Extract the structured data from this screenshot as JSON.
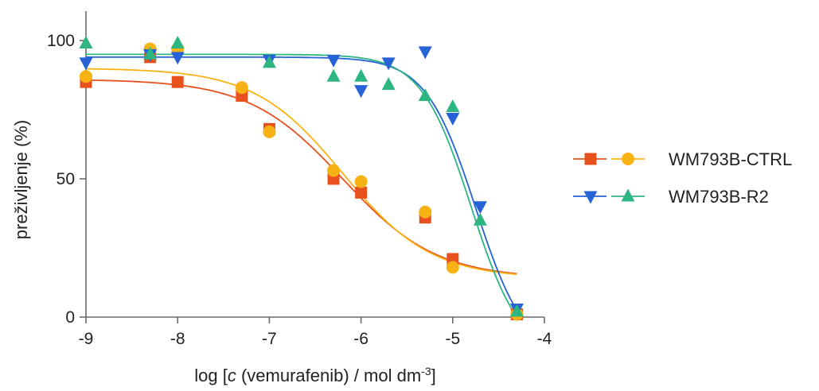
{
  "chart_data": {
    "type": "scatter",
    "xlabel": {
      "prefix": "log [",
      "italic": "c",
      "middle": " (vemurafenib) / mol dm",
      "superscript": "-3",
      "suffix": "]"
    },
    "ylabel": "preživljenje (%)",
    "xlim": [
      -9,
      -4
    ],
    "ylim": [
      0,
      100
    ],
    "x_ticks": [
      -9,
      -8,
      -7,
      -6,
      -5,
      -4
    ],
    "y_ticks": [
      0,
      50,
      100
    ],
    "grid": false,
    "legend_position": "right",
    "legend": [
      {
        "label": "WM793B-CTRL",
        "series": [
          0,
          1
        ]
      },
      {
        "label": "WM793B-R2",
        "series": [
          2,
          3
        ]
      }
    ],
    "series": [
      {
        "marker": "square",
        "color": "#E8501E",
        "points": [
          [
            -9,
            85
          ],
          [
            -8.3,
            94
          ],
          [
            -8,
            85
          ],
          [
            -7.3,
            80
          ],
          [
            -7,
            68
          ],
          [
            -6.3,
            50
          ],
          [
            -6,
            45
          ],
          [
            -5.3,
            36
          ],
          [
            -5,
            21
          ],
          [
            -4.3,
            1
          ]
        ],
        "fit": {
          "top": 86,
          "bottom": 14,
          "logIC50": -6.2,
          "hill": 0.85
        }
      },
      {
        "marker": "circle",
        "color": "#F9B214",
        "points": [
          [
            -9,
            87
          ],
          [
            -8.3,
            97
          ],
          [
            -8,
            97
          ],
          [
            -7.3,
            83
          ],
          [
            -7,
            67
          ],
          [
            -6.3,
            53
          ],
          [
            -6,
            49
          ],
          [
            -5.3,
            38
          ],
          [
            -5,
            18
          ],
          [
            -4.3,
            1
          ]
        ],
        "fit": {
          "top": 90,
          "bottom": 14,
          "logIC50": -6.2,
          "hill": 0.9
        }
      },
      {
        "marker": "triangle-down",
        "color": "#2563D6",
        "points": [
          [
            -9,
            92
          ],
          [
            -8.3,
            95
          ],
          [
            -8,
            94
          ],
          [
            -7,
            93
          ],
          [
            -6.3,
            93
          ],
          [
            -6,
            82
          ],
          [
            -5.7,
            92
          ],
          [
            -5.3,
            96
          ],
          [
            -5,
            72
          ],
          [
            -4.7,
            40
          ],
          [
            -4.3,
            3
          ]
        ],
        "fit": {
          "top": 94,
          "bottom": -15,
          "logIC50": -4.75,
          "hill": 1.6
        }
      },
      {
        "marker": "triangle-up",
        "color": "#2DB582",
        "points": [
          [
            -9,
            99
          ],
          [
            -8.3,
            95
          ],
          [
            -8,
            99
          ],
          [
            -7,
            92
          ],
          [
            -6.3,
            87
          ],
          [
            -6,
            87
          ],
          [
            -5.7,
            84
          ],
          [
            -5.3,
            80
          ],
          [
            -5,
            76
          ],
          [
            -4.7,
            35
          ],
          [
            -4.3,
            2
          ]
        ],
        "fit": {
          "top": 95,
          "bottom": -15,
          "logIC50": -4.8,
          "hill": 1.6
        }
      }
    ]
  }
}
